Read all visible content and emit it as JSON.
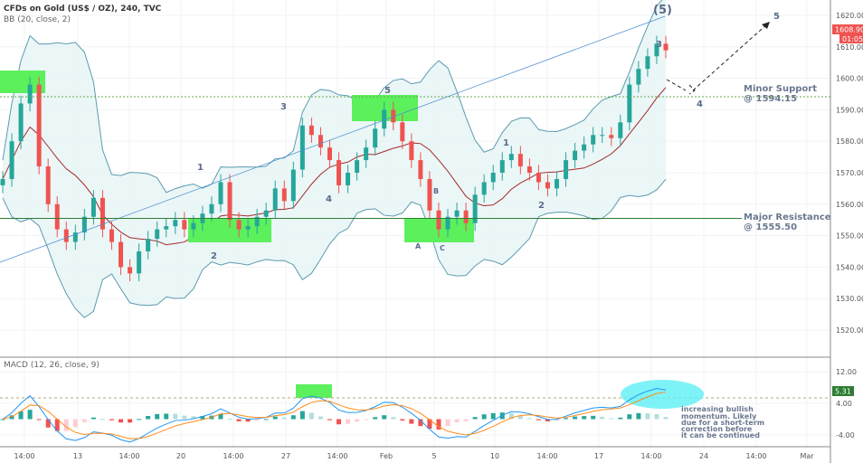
{
  "header": {
    "title": "CFDs on Gold (US$ / OZ), 240, TVC",
    "bb_label": "BB (20, close, 2)",
    "macd_label": "MACD (12, 26, close, 9)"
  },
  "colors": {
    "up": "#26a69a",
    "down": "#ef5350",
    "bb": "#5b9bb0",
    "basis": "#a52a2a",
    "trend": "#4a8fd0",
    "support": "#6aa84f",
    "resistance": "#2e7d32",
    "box": "#5cf05c",
    "macd": "#2196f3",
    "signal": "#ff8c1a",
    "ellipse": "#5ef0f5"
  },
  "chart_data": {
    "type": "candlestick",
    "ylim": [
      1515,
      1625
    ],
    "y_ticks": [
      "1620.00",
      "1610.00",
      "1600.00",
      "1590.00",
      "1580.00",
      "1570.00",
      "1560.00",
      "1550.00",
      "1540.00",
      "1530.00",
      "1520.00"
    ],
    "y_tick_values": [
      1620,
      1610,
      1600,
      1590,
      1580,
      1570,
      1560,
      1550,
      1540,
      1530,
      1520
    ],
    "macd_ylim": [
      -8,
      16
    ],
    "macd_ticks": [
      "12.00",
      "4.00",
      "-4.00"
    ],
    "macd_tick_values": [
      12,
      4,
      -4
    ],
    "x_ticks": [
      "14:00",
      "13",
      "14:00",
      "20",
      "14:00",
      "27",
      "14:00",
      "Feb",
      "5",
      "10",
      "14:00",
      "17",
      "14:00",
      "24",
      "14:00",
      "Mar"
    ],
    "closes": [
      1568,
      1580,
      1592,
      1598,
      1572,
      1560,
      1552,
      1548,
      1551,
      1556,
      1562,
      1552,
      1548,
      1540,
      1538,
      1545,
      1549,
      1552,
      1553,
      1555,
      1552,
      1554,
      1557,
      1560,
      1567,
      1555,
      1552,
      1553,
      1556,
      1558,
      1565,
      1561,
      1571,
      1585,
      1582,
      1578,
      1574,
      1566,
      1570,
      1574,
      1578,
      1584,
      1590,
      1586,
      1580,
      1574,
      1568,
      1558,
      1552,
      1556,
      1558,
      1554,
      1563,
      1567,
      1570,
      1574,
      1576,
      1572,
      1570,
      1567,
      1565,
      1568,
      1574,
      1577,
      1579,
      1582,
      1582,
      1581,
      1586,
      1598,
      1603,
      1607,
      1611,
      1608.9
    ],
    "last_price": "1608.90",
    "countdown": "01:05",
    "macd_last": "5.31",
    "levels": [
      {
        "name": "Minor Support",
        "value": 1594.15,
        "label": "Minor Support\n@ 1594.15",
        "line1": "Minor Support",
        "line2": "@ 1594.15"
      },
      {
        "name": "Major Resistance",
        "value": 1555.5,
        "line1": "Major Resistance",
        "line2": "@ 1555.50"
      }
    ]
  },
  "waves": {
    "w5_main": "(5)",
    "a1": "1",
    "a2": "2",
    "a3": "3",
    "a4": "4",
    "a5": "5",
    "wA": "A",
    "wB": "B",
    "wC": "C",
    "b1": "1",
    "b2": "2",
    "b3": "3",
    "b4": "4",
    "b5": "5"
  },
  "macd_note": [
    "increasing bullish",
    "momentum. Likely",
    "due for a short-term",
    "correction before",
    "it can be continued"
  ]
}
